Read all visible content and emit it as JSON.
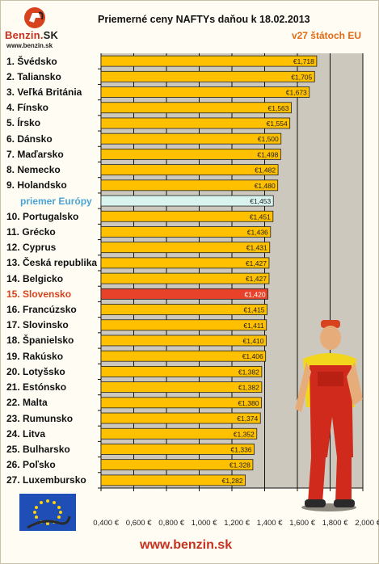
{
  "header": {
    "logo_text": "Benzin",
    "logo_suffix": "SK",
    "logo_url": "www.benzin.sk",
    "title": "Priemerné ceny NAFTYs daňou k 18.02.2013",
    "subtitle": "v27 štátoch EU"
  },
  "footer": {
    "url": "www.benzin.sk"
  },
  "colors": {
    "bar": "#ffc000",
    "bar_average": "#d9f4ef",
    "bar_highlight": "#e8432a",
    "plot_background": "#ccc8bd",
    "gridline": "#111111"
  },
  "chart_data": {
    "type": "bar",
    "orientation": "horizontal",
    "title": "Priemerné ceny NAFTYs daňou k 18.02.2013",
    "subtitle": "v27 štátoch EU",
    "categories": [
      "1. Švédsko",
      "2. Taliansko",
      "3. Veľká Británia",
      "4. Fínsko",
      "5. Írsko",
      "6. Dánsko",
      "7. Maďarsko",
      "8. Nemecko",
      "9. Holandsko",
      "priemer Európy",
      "10. Portugalsko",
      "11. Grécko",
      "12. Cyprus",
      "13. Česká republika",
      "14. Belgicko",
      "15. Slovensko",
      "16. Francúzsko",
      "17. Slovinsko",
      "18. Španielsko",
      "19. Rakúsko",
      "20. Lotyšsko",
      "21. Estónsko",
      "22. Malta",
      "23. Rumunsko",
      "24. Litva",
      "25. Bulharsko",
      "26. Poľsko",
      "27. Luxembursko"
    ],
    "values": [
      1.718,
      1.705,
      1.673,
      1.563,
      1.554,
      1.5,
      1.498,
      1.482,
      1.48,
      1.453,
      1.451,
      1.436,
      1.431,
      1.427,
      1.427,
      1.42,
      1.415,
      1.411,
      1.41,
      1.406,
      1.382,
      1.382,
      1.38,
      1.374,
      1.352,
      1.336,
      1.328,
      1.282
    ],
    "value_labels": [
      "€1,718",
      "€1,705",
      "€1,673",
      "€1,563",
      "€1,554",
      "€1,500",
      "€1,498",
      "€1,482",
      "€1,480",
      "€1,453",
      "€1,451",
      "€1,436",
      "€1,431",
      "€1,427",
      "€1,427",
      "€1,420",
      "€1,415",
      "€1,411",
      "€1,410",
      "€1,406",
      "€1,382",
      "€1,382",
      "€1,380",
      "€1,374",
      "€1,352",
      "€1,336",
      "€1,328",
      "€1,282"
    ],
    "average_category": "priemer Európy",
    "highlight_category": "15. Slovensko",
    "xlim": [
      0.4,
      2.0
    ],
    "xticks": [
      0.4,
      0.6,
      0.8,
      1.0,
      1.2,
      1.4,
      1.6,
      1.8,
      2.0
    ],
    "xtick_labels": [
      "0,400 €",
      "0,600 €",
      "0,800 €",
      "1,000 €",
      "1,200 €",
      "1,400 €",
      "1,600 €",
      "1,800 €",
      "2,000 €"
    ],
    "grid": "vertical"
  }
}
